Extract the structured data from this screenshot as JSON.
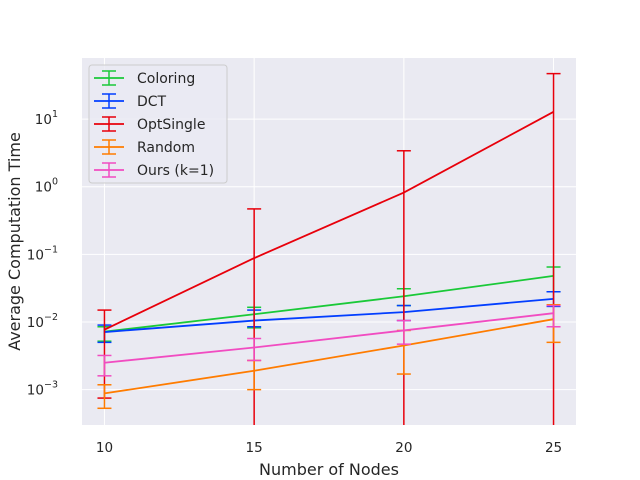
{
  "chart_data": {
    "type": "line",
    "title": "",
    "xlabel": "Number of Nodes",
    "ylabel": "Average Computation Time",
    "x": [
      10,
      15,
      20,
      25
    ],
    "xlim": [
      9.25,
      25.75
    ],
    "yscale": "log",
    "ylim": [
      0.0003,
      80
    ],
    "x_ticks": [
      "10",
      "15",
      "20",
      "25"
    ],
    "y_ticks": [
      {
        "value": 0.001,
        "base": "10",
        "exp": "−3"
      },
      {
        "value": 0.01,
        "base": "10",
        "exp": "−2"
      },
      {
        "value": 0.1,
        "base": "10",
        "exp": "−1"
      },
      {
        "value": 1,
        "base": "10",
        "exp": "0"
      },
      {
        "value": 10,
        "base": "10",
        "exp": "1"
      }
    ],
    "grid": true,
    "legend_position": "top-left",
    "series": [
      {
        "name": "Coloring",
        "color": "#1ac938",
        "values": [
          0.0072,
          0.013,
          0.024,
          0.048
        ],
        "err_low": [
          0.0052,
          0.0082,
          0.0175,
          0.028
        ],
        "err_high": [
          0.0085,
          0.0165,
          0.031,
          0.065
        ]
      },
      {
        "name": "DCT",
        "color": "#023eff",
        "values": [
          0.0071,
          0.0105,
          0.014,
          0.022
        ],
        "err_low": [
          0.005,
          0.0085,
          0.0105,
          0.017
        ],
        "err_high": [
          0.009,
          0.015,
          0.0175,
          0.028
        ]
      },
      {
        "name": "OptSingle",
        "color": "#e8000b",
        "values": [
          0.0077,
          0.088,
          0.82,
          12.8
        ],
        "err_low": [
          0.00075,
          0.0001,
          0.0001,
          0.0001
        ],
        "err_high": [
          0.015,
          0.47,
          3.4,
          47
        ]
      },
      {
        "name": "Random",
        "color": "#ff7c00",
        "values": [
          0.00088,
          0.0019,
          0.0045,
          0.011
        ],
        "err_low": [
          0.00053,
          0.001,
          0.0017,
          0.005
        ],
        "err_high": [
          0.00118,
          0.0027,
          0.0075,
          0.018
        ]
      },
      {
        "name": "Ours (k=1)",
        "color": "#f14cc1",
        "values": [
          0.0025,
          0.0042,
          0.0075,
          0.0135
        ],
        "err_low": [
          0.0016,
          0.0027,
          0.0047,
          0.0085
        ],
        "err_high": [
          0.0032,
          0.0057,
          0.0105,
          0.0175
        ]
      }
    ]
  }
}
